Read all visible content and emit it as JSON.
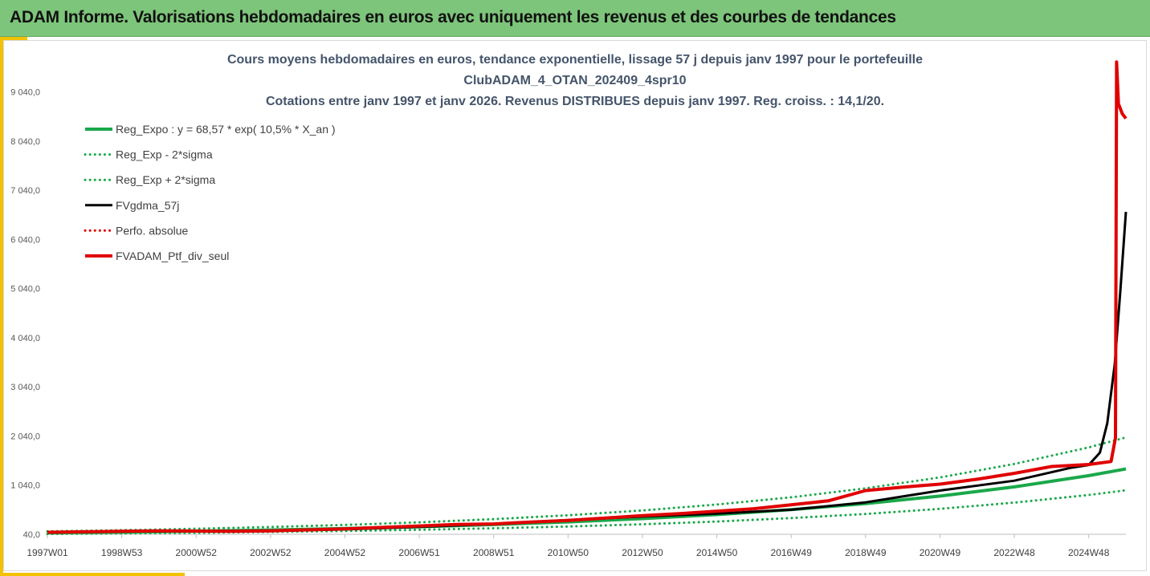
{
  "banner": {
    "title": "ADAM Informe. Valorisations hebdomadaires en euros avec uniquement les revenus et des courbes de tendances"
  },
  "colors": {
    "banner_bg": "#7dc57a",
    "accent": "#f2c200",
    "title_text": "#44546a",
    "green": "#1aa84a",
    "black": "#000000",
    "red": "#e00000"
  },
  "chart_data": {
    "type": "line",
    "title": [
      "Cours moyens hebdomadaires  en euros, tendance exponentielle, lissage 57 j depuis janv 1997 pour le portefeuille",
      "ClubADAM_4_OTAN_202409_4spr10",
      "Cotations entre janv 1997 et janv 2026. Revenus DISTRIBUES depuis janv 1997. Reg. croiss. : 14,1/20."
    ],
    "xlabel": "",
    "ylabel": "",
    "ylim": [
      40,
      9540
    ],
    "xlim": [
      1997.0,
      2026.0
    ],
    "yticks": [
      "40,0",
      "1 040,0",
      "2 040,0",
      "3 040,0",
      "4 040,0",
      "5 040,0",
      "6 040,0",
      "7 040,0",
      "8 040,0",
      "9 040,0"
    ],
    "ytick_values": [
      40,
      1040,
      2040,
      3040,
      4040,
      5040,
      6040,
      7040,
      8040,
      9040
    ],
    "xticks": [
      "1997W01",
      "1998W53",
      "2000W52",
      "2002W52",
      "2004W52",
      "2006W51",
      "2008W51",
      "2010W50",
      "2012W50",
      "2014W50",
      "2016W49",
      "2018W49",
      "2020W49",
      "2022W48",
      "2024W48"
    ],
    "xtick_values": [
      1997.0,
      1999.0,
      2001.0,
      2003.0,
      2005.0,
      2007.0,
      2009.0,
      2011.0,
      2013.0,
      2015.0,
      2017.0,
      2019.0,
      2021.0,
      2023.0,
      2025.0
    ],
    "series": [
      {
        "name": "Reg_Expo : y = 68,57 * exp( 10,5% *  X_an )",
        "style": "solid",
        "color": "#1aa84a",
        "width": 4,
        "x": [
          1997,
          1999,
          2001,
          2003,
          2005,
          2007,
          2009,
          2011,
          2013,
          2015,
          2017,
          2019,
          2021,
          2023,
          2025,
          2026
        ],
        "y": [
          69,
          85,
          104,
          128,
          157,
          193,
          237,
          291,
          358,
          440,
          541,
          665,
          817,
          1004,
          1233,
          1370
        ]
      },
      {
        "name": "Reg_Exp - 2*sigma",
        "style": "dotted",
        "color": "#1aa84a",
        "width": 3,
        "x": [
          1997,
          1999,
          2001,
          2003,
          2005,
          2007,
          2009,
          2011,
          2013,
          2015,
          2017,
          2019,
          2021,
          2023,
          2025,
          2026
        ],
        "y": [
          47,
          58,
          71,
          87,
          107,
          132,
          162,
          199,
          244,
          300,
          369,
          453,
          557,
          684,
          840,
          935
        ]
      },
      {
        "name": "Reg_Exp + 2*sigma",
        "style": "dotted",
        "color": "#1aa84a",
        "width": 3,
        "x": [
          1997,
          1999,
          2001,
          2003,
          2005,
          2007,
          2009,
          2011,
          2013,
          2015,
          2017,
          2019,
          2021,
          2023,
          2025,
          2026
        ],
        "y": [
          101,
          124,
          153,
          188,
          231,
          283,
          348,
          427,
          525,
          645,
          793,
          975,
          1198,
          1472,
          1808,
          2010
        ]
      },
      {
        "name": "FVgdma_57j",
        "style": "solid",
        "color": "#000000",
        "width": 3,
        "x": [
          1997,
          1999,
          2001,
          2003,
          2005,
          2007,
          2009,
          2011,
          2013,
          2015,
          2017,
          2019,
          2021,
          2023,
          2024.5,
          2025,
          2025.3,
          2025.5,
          2025.7,
          2025.85,
          2026
        ],
        "y": [
          75,
          95,
          105,
          110,
          140,
          190,
          250,
          330,
          400,
          460,
          540,
          690,
          930,
          1130,
          1390,
          1450,
          1700,
          2300,
          3500,
          5000,
          6600
        ]
      },
      {
        "name": "Perfo. absolue",
        "style": "dotted",
        "color": "#e00000",
        "width": 3,
        "x": [],
        "y": []
      },
      {
        "name": "FVADAM_Ptf_div_seul",
        "style": "solid",
        "color": "#e00000",
        "width": 4,
        "x": [
          1997,
          1998,
          1999,
          2000,
          2001,
          2002,
          2003,
          2004,
          2005,
          2006,
          2007,
          2008,
          2009,
          2010,
          2011,
          2012,
          2013,
          2014,
          2015,
          2016,
          2017,
          2018,
          2019,
          2020,
          2021,
          2022,
          2023,
          2024,
          2025,
          2025.6,
          2025.72,
          2025.75,
          2025.8,
          2025.85,
          2025.9,
          2025.95,
          2026
        ],
        "y": [
          80,
          90,
          100,
          110,
          105,
          100,
          110,
          130,
          150,
          180,
          210,
          240,
          250,
          290,
          320,
          370,
          420,
          460,
          510,
          560,
          640,
          720,
          930,
          1000,
          1060,
          1160,
          1280,
          1420,
          1460,
          1520,
          2000,
          9650,
          8800,
          8700,
          8600,
          8550,
          8500
        ]
      }
    ]
  }
}
